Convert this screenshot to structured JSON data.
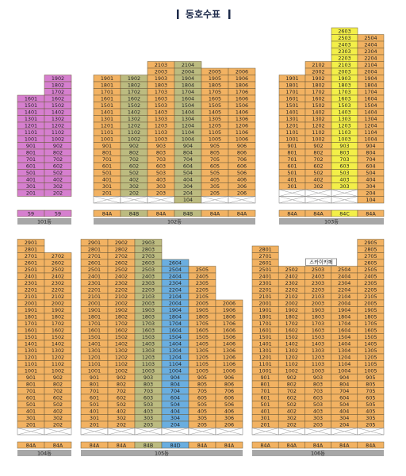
{
  "title": "동호수표",
  "buildings": [
    {
      "name": "101동",
      "columns": [
        {
          "type": "59",
          "color": "#d67fcf",
          "units": [
            1601,
            1501,
            1401,
            1301,
            1201,
            1101,
            1001,
            901,
            801,
            701,
            601,
            501,
            401,
            301,
            201
          ]
        },
        {
          "type": "59",
          "color": "#d67fcf",
          "units": [
            1902,
            1802,
            1702,
            1602,
            1502,
            1402,
            1302,
            1202,
            1102,
            1002,
            902,
            802,
            702,
            602,
            502,
            402,
            302,
            202
          ]
        }
      ]
    },
    {
      "name": "102동",
      "columns": [
        {
          "type": "84A",
          "color": "#f2b262",
          "units": [
            1901,
            1801,
            1701,
            1601,
            1501,
            1401,
            1301,
            1201,
            1101,
            1001,
            901,
            801,
            701,
            601,
            501,
            401,
            301,
            201,
            null
          ]
        },
        {
          "type": "84B",
          "color": "#bcbb80",
          "units": [
            1902,
            1802,
            1702,
            1602,
            1502,
            1402,
            1302,
            1202,
            1102,
            1002,
            902,
            802,
            702,
            602,
            502,
            402,
            302,
            202,
            null
          ]
        },
        {
          "type": "84A",
          "color": "#f2b262",
          "units": [
            2103,
            2003,
            1903,
            1803,
            1703,
            1603,
            1503,
            1403,
            1303,
            1203,
            1103,
            1003,
            903,
            803,
            703,
            603,
            503,
            403,
            303,
            203,
            null
          ]
        },
        {
          "type": "84B",
          "color": "#bcbb80",
          "units": [
            2104,
            2004,
            1904,
            1804,
            1704,
            1604,
            1504,
            1404,
            1304,
            1204,
            1104,
            1004,
            904,
            804,
            704,
            604,
            504,
            404,
            304,
            204,
            104
          ]
        },
        {
          "type": "84A",
          "color": "#f2b262",
          "units": [
            2005,
            1905,
            1805,
            1705,
            1605,
            1505,
            1405,
            1305,
            1205,
            1105,
            1005,
            905,
            805,
            705,
            605,
            505,
            405,
            305,
            205,
            null
          ]
        },
        {
          "type": "84A",
          "color": "#f2b262",
          "units": [
            2006,
            1906,
            1806,
            1706,
            1606,
            1506,
            1406,
            1306,
            1206,
            1106,
            1006,
            906,
            806,
            706,
            606,
            506,
            406,
            306,
            206,
            null
          ]
        }
      ]
    },
    {
      "name": "103동",
      "columns": [
        {
          "type": "84A",
          "color": "#f2b262",
          "units": [
            1901,
            1801,
            1701,
            1601,
            1501,
            1401,
            1301,
            1201,
            1101,
            1001,
            901,
            801,
            701,
            601,
            501,
            401,
            301,
            null,
            null
          ]
        },
        {
          "type": "84A",
          "color": "#f2b262",
          "units": [
            2102,
            2002,
            1902,
            1802,
            1702,
            1602,
            1502,
            1402,
            1302,
            1202,
            1102,
            1002,
            902,
            802,
            702,
            602,
            502,
            402,
            302,
            null,
            null
          ]
        },
        {
          "type": "84C",
          "color": "#f3ef48",
          "units": [
            2603,
            2503,
            2403,
            2303,
            2203,
            2103,
            2003,
            1903,
            1803,
            1703,
            1603,
            1503,
            1403,
            1303,
            1203,
            1103,
            1003,
            903,
            803,
            703,
            603,
            503,
            403,
            303,
            null,
            null
          ]
        },
        {
          "type": "84A",
          "color": "#f2b262",
          "units": [
            2504,
            2404,
            2304,
            2204,
            2104,
            2004,
            1904,
            1804,
            1704,
            1604,
            1504,
            1404,
            1304,
            1204,
            1104,
            1004,
            904,
            804,
            704,
            604,
            504,
            404,
            304,
            204,
            104
          ]
        }
      ]
    },
    {
      "name": "104동",
      "columns": [
        {
          "type": "84A",
          "color": "#f2b262",
          "units": [
            2901,
            2801,
            2701,
            2601,
            2501,
            2401,
            2301,
            2201,
            2101,
            2001,
            1901,
            1801,
            1701,
            1601,
            1501,
            1401,
            1301,
            1201,
            1101,
            1001,
            901,
            801,
            701,
            601,
            501,
            401,
            301,
            201,
            null
          ]
        },
        {
          "type": "84A",
          "color": "#f2b262",
          "units": [
            2702,
            2602,
            2502,
            2402,
            2302,
            2202,
            2102,
            2002,
            1902,
            1802,
            1702,
            1602,
            1502,
            1402,
            1302,
            1202,
            1102,
            1002,
            902,
            802,
            702,
            602,
            502,
            402,
            302,
            202,
            null
          ]
        }
      ]
    },
    {
      "name": "105동",
      "columns": [
        {
          "type": "84A",
          "color": "#f2b262",
          "units": [
            2901,
            2801,
            2701,
            2601,
            2501,
            2401,
            2301,
            2201,
            2101,
            2001,
            1901,
            1801,
            1701,
            1601,
            1501,
            1401,
            1301,
            1201,
            1101,
            1001,
            901,
            801,
            701,
            601,
            501,
            401,
            301,
            201,
            null
          ]
        },
        {
          "type": "84A",
          "color": "#f2b262",
          "units": [
            2902,
            2802,
            2702,
            2602,
            2502,
            2402,
            2302,
            2202,
            2102,
            2002,
            1902,
            1802,
            1702,
            1602,
            1502,
            1402,
            1302,
            1202,
            1102,
            1002,
            902,
            802,
            702,
            602,
            502,
            402,
            302,
            202,
            null
          ]
        },
        {
          "type": "84B",
          "color": "#bcbb80",
          "units": [
            2903,
            2803,
            2703,
            2603,
            2503,
            2403,
            2303,
            2203,
            2103,
            2003,
            1903,
            1803,
            1703,
            1603,
            1503,
            1403,
            1303,
            1203,
            1103,
            1003,
            903,
            803,
            703,
            603,
            503,
            403,
            303,
            203,
            null
          ]
        },
        {
          "type": "84D",
          "color": "#6aaee0",
          "units": [
            2604,
            2504,
            2404,
            2304,
            2204,
            2104,
            2004,
            1904,
            1804,
            1704,
            1604,
            1504,
            1404,
            1304,
            1204,
            1104,
            1004,
            904,
            804,
            704,
            604,
            504,
            404,
            304,
            204,
            null
          ]
        },
        {
          "type": "84A",
          "color": "#f2b262",
          "units": [
            2505,
            2405,
            2305,
            2205,
            2105,
            2005,
            1905,
            1805,
            1705,
            1605,
            1505,
            1405,
            1305,
            1205,
            1105,
            1005,
            905,
            805,
            705,
            605,
            505,
            405,
            305,
            205,
            null
          ]
        },
        {
          "type": "84A",
          "color": "#f2b262",
          "units": [
            2006,
            1906,
            1806,
            1706,
            1606,
            1506,
            1406,
            1306,
            1206,
            1106,
            1006,
            906,
            806,
            706,
            606,
            506,
            406,
            306,
            206,
            null
          ]
        }
      ]
    },
    {
      "name": "106동",
      "columns": [
        {
          "type": "84A",
          "color": "#f2b262",
          "units": [
            2801,
            2701,
            2601,
            2501,
            2401,
            2301,
            2201,
            2101,
            2001,
            1901,
            1801,
            1701,
            1601,
            1501,
            1401,
            1301,
            1201,
            1101,
            1001,
            901,
            801,
            701,
            601,
            501,
            401,
            301,
            201,
            null
          ]
        },
        {
          "type": "84A",
          "color": "#f2b262",
          "units": [
            2502,
            2402,
            2302,
            2202,
            2102,
            2002,
            1902,
            1802,
            1702,
            1602,
            1502,
            1402,
            1302,
            1202,
            1102,
            1002,
            902,
            802,
            702,
            602,
            502,
            402,
            302,
            202,
            null
          ]
        },
        {
          "type": "84A",
          "color": "#f2b262",
          "annotation": "스카이카페",
          "units": [
            2503,
            2403,
            2303,
            2203,
            2103,
            2003,
            1903,
            1803,
            1703,
            1603,
            1503,
            1403,
            1303,
            1203,
            1103,
            1003,
            903,
            803,
            703,
            603,
            503,
            403,
            303,
            203,
            null
          ]
        },
        {
          "type": "84A",
          "color": "#f2b262",
          "units": [
            2504,
            2404,
            2304,
            2204,
            2104,
            2004,
            1904,
            1804,
            1704,
            1604,
            1504,
            1404,
            1304,
            1204,
            1104,
            1004,
            904,
            804,
            704,
            604,
            504,
            404,
            304,
            204,
            null
          ]
        },
        {
          "type": "84A",
          "color": "#f2b262",
          "units": [
            2905,
            2805,
            2705,
            2605,
            2505,
            2405,
            2305,
            2205,
            2105,
            2005,
            1905,
            1805,
            1705,
            1605,
            1505,
            1405,
            1305,
            1205,
            1105,
            1005,
            905,
            805,
            705,
            605,
            505,
            405,
            305,
            205,
            null
          ]
        }
      ]
    }
  ]
}
